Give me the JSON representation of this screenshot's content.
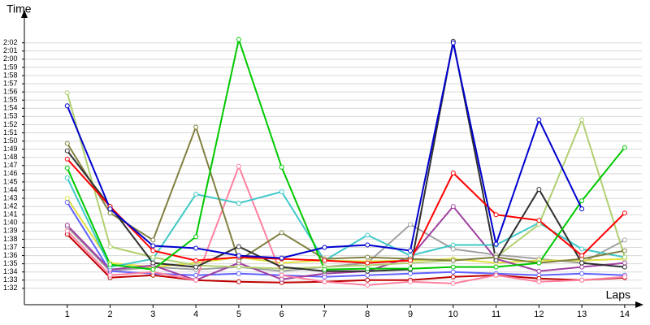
{
  "chart_data": {
    "type": "line",
    "x_label": "Laps",
    "y_label": "Time",
    "x": [
      1,
      2,
      3,
      4,
      5,
      6,
      7,
      8,
      9,
      10,
      11,
      12,
      13,
      14
    ],
    "xlim": [
      0,
      14.4
    ],
    "xticks": [
      1,
      2,
      3,
      4,
      5,
      6,
      7,
      8,
      9,
      10,
      11,
      12,
      13,
      14
    ],
    "ylim": [
      90,
      125
    ],
    "yticks": [
      {
        "value": 92,
        "label": "1:32"
      },
      {
        "value": 93,
        "label": "1:33"
      },
      {
        "value": 94,
        "label": "1:34"
      },
      {
        "value": 95,
        "label": "1:35"
      },
      {
        "value": 96,
        "label": "1:36"
      },
      {
        "value": 97,
        "label": "1:37"
      },
      {
        "value": 98,
        "label": "1:38"
      },
      {
        "value": 99,
        "label": "1:39"
      },
      {
        "value": 100,
        "label": "1:40"
      },
      {
        "value": 101,
        "label": "1:41"
      },
      {
        "value": 102,
        "label": "1:42"
      },
      {
        "value": 103,
        "label": "1:43"
      },
      {
        "value": 104,
        "label": "1:44"
      },
      {
        "value": 105,
        "label": "1:45"
      },
      {
        "value": 106,
        "label": "1:46"
      },
      {
        "value": 107,
        "label": "1:47"
      },
      {
        "value": 108,
        "label": "1:48"
      },
      {
        "value": 109,
        "label": "1:49"
      },
      {
        "value": 110,
        "label": "1:50"
      },
      {
        "value": 111,
        "label": "1:51"
      },
      {
        "value": 112,
        "label": "1:52"
      },
      {
        "value": 113,
        "label": "1:53"
      },
      {
        "value": 114,
        "label": "1:54"
      },
      {
        "value": 115,
        "label": "1:55"
      },
      {
        "value": 116,
        "label": "1:56"
      },
      {
        "value": 117,
        "label": "1:57"
      },
      {
        "value": 118,
        "label": "1:58"
      },
      {
        "value": 119,
        "label": "1:59"
      },
      {
        "value": 120,
        "label": "2:00"
      },
      {
        "value": 121,
        "label": "2:01"
      },
      {
        "value": 122,
        "label": "2:02"
      }
    ],
    "grid": true,
    "series": [
      {
        "color": "#a0a0a0",
        "values": [
          99.5,
          94.1,
          94.6,
          94.3,
          94.6,
          94.1,
          94.6,
          95.1,
          99.8,
          96.8,
          96.1,
          95.6,
          95.1,
          97.9
        ]
      },
      {
        "color": "#e0e040",
        "values": [
          103,
          95.1,
          94.6,
          95.1,
          95.8,
          95.1,
          95.4,
          95.3,
          95.4,
          95.6,
          95.1,
          95.4,
          95.4,
          95.6
        ]
      },
      {
        "color": "#6060ff",
        "values": [
          102.5,
          94.1,
          93.8,
          93.6,
          93.8,
          93.6,
          93.4,
          93.6,
          93.8,
          94,
          93.8,
          93.6,
          93.8,
          93.6
        ]
      },
      {
        "color": "#c00000",
        "values": [
          98.6,
          93.3,
          93.6,
          93,
          92.8,
          92.7,
          92.8,
          93,
          93,
          93.4,
          93.6,
          93.2,
          93,
          93.3
        ]
      },
      {
        "color": "#a040a0",
        "values": [
          99.7,
          94.3,
          94.8,
          93,
          95.1,
          93.1,
          93.8,
          94.1,
          95.8,
          102,
          95.6,
          94.1,
          94.6,
          95.1
        ]
      },
      {
        "color": "#ff80a0",
        "values": [
          99,
          93.6,
          94,
          93,
          106.9,
          93.6,
          92.8,
          92.4,
          92.8,
          92.6,
          93.6,
          92.8,
          93,
          93.4
        ]
      },
      {
        "color": "#40c8c8",
        "values": [
          105.5,
          94.6,
          95.6,
          103.5,
          102.4,
          103.8,
          95.4,
          98.5,
          96,
          97.3,
          97.3,
          100,
          96.8,
          95.8
        ]
      },
      {
        "color": "#b0d070",
        "values": [
          115.9,
          97.1,
          95.8,
          94.8,
          94.6,
          94.4,
          94.6,
          94.8,
          95.1,
          95.4,
          95.8,
          99.8,
          112.6,
          95.8
        ]
      },
      {
        "color": "#808040",
        "values": [
          109.7,
          101.2,
          97.9,
          111.7,
          95.4,
          98.8,
          95.6,
          95.8,
          95.6,
          95.4,
          95.8,
          95.1,
          95.6,
          96.6
        ]
      },
      {
        "color": "#303030",
        "values": [
          108.8,
          102,
          95.1,
          94.6,
          97.1,
          94.6,
          94.1,
          94.1,
          94.3,
          122.2,
          95.4,
          104.1,
          95.1,
          94.6
        ]
      },
      {
        "color": "#ff0000",
        "values": [
          107.8,
          102,
          96.6,
          95.4,
          95.8,
          95.6,
          95.4,
          95.1,
          95.4,
          106.1,
          101,
          100.3,
          96,
          101.2
        ]
      },
      {
        "color": "#00c800",
        "values": [
          106.7,
          94.9,
          94.3,
          98.3,
          122.4,
          106.8,
          94.3,
          94.4,
          94.4,
          94.6,
          94.6,
          95.1,
          102.7,
          109.2
        ]
      },
      {
        "color": "#0000d0",
        "values": [
          114.3,
          101.7,
          97.2,
          96.9,
          96,
          95.7,
          97,
          97.3,
          96.6,
          122,
          97.4,
          112.6,
          101.7,
          null
        ]
      }
    ]
  }
}
